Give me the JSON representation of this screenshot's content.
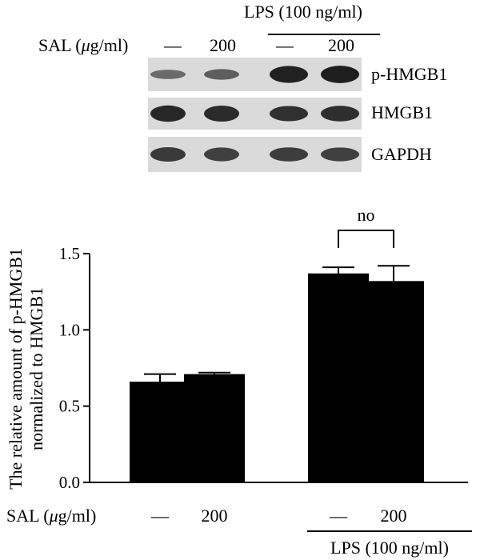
{
  "western_blot": {
    "lps_label": "LPS (100 ng/ml)",
    "sal_label_prefix": "SAL (",
    "sal_label_mu": "μ",
    "sal_label_suffix": "g/ml)",
    "lane_labels": [
      "—",
      "200",
      "—",
      "200"
    ],
    "bands": [
      {
        "name": "p-HMGB1",
        "intensity": [
          0.35,
          0.45,
          0.95,
          0.98
        ]
      },
      {
        "name": "HMGB1",
        "intensity": [
          0.9,
          0.88,
          0.82,
          0.85
        ]
      },
      {
        "name": "GAPDH",
        "intensity": [
          0.75,
          0.7,
          0.72,
          0.7
        ]
      }
    ],
    "colors": {
      "strip": "#dadada",
      "band": "#111111"
    }
  },
  "chart_data": {
    "type": "bar",
    "categories": [
      "SAL — / LPS —",
      "SAL 200 / LPS —",
      "SAL — / LPS 100",
      "SAL 200 / LPS 100"
    ],
    "values": [
      0.66,
      0.71,
      1.37,
      1.32
    ],
    "errors": [
      0.05,
      0.01,
      0.04,
      0.1
    ],
    "ylabel": "The relative amount of p-HMGB1 normalized to HMGB1",
    "ylabel_line1": "The relative amount of p-HMGB1",
    "ylabel_line2": "normalized to HMGB1",
    "ylim": [
      0,
      1.5
    ],
    "yticks": [
      0.0,
      0.5,
      1.0,
      1.5
    ],
    "ytick_labels": [
      "0.0",
      "0.5",
      "1.0",
      "1.5"
    ],
    "xtick_labels": [
      "—",
      "200",
      "—",
      "200"
    ],
    "sal_label_prefix": "SAL (",
    "sal_label_mu": "μ",
    "sal_label_suffix": "g/ml)",
    "lps_label": "LPS (100 ng/ml)",
    "significance": {
      "from": 2,
      "to": 3,
      "label": "no"
    },
    "bar_color": "#000000"
  }
}
